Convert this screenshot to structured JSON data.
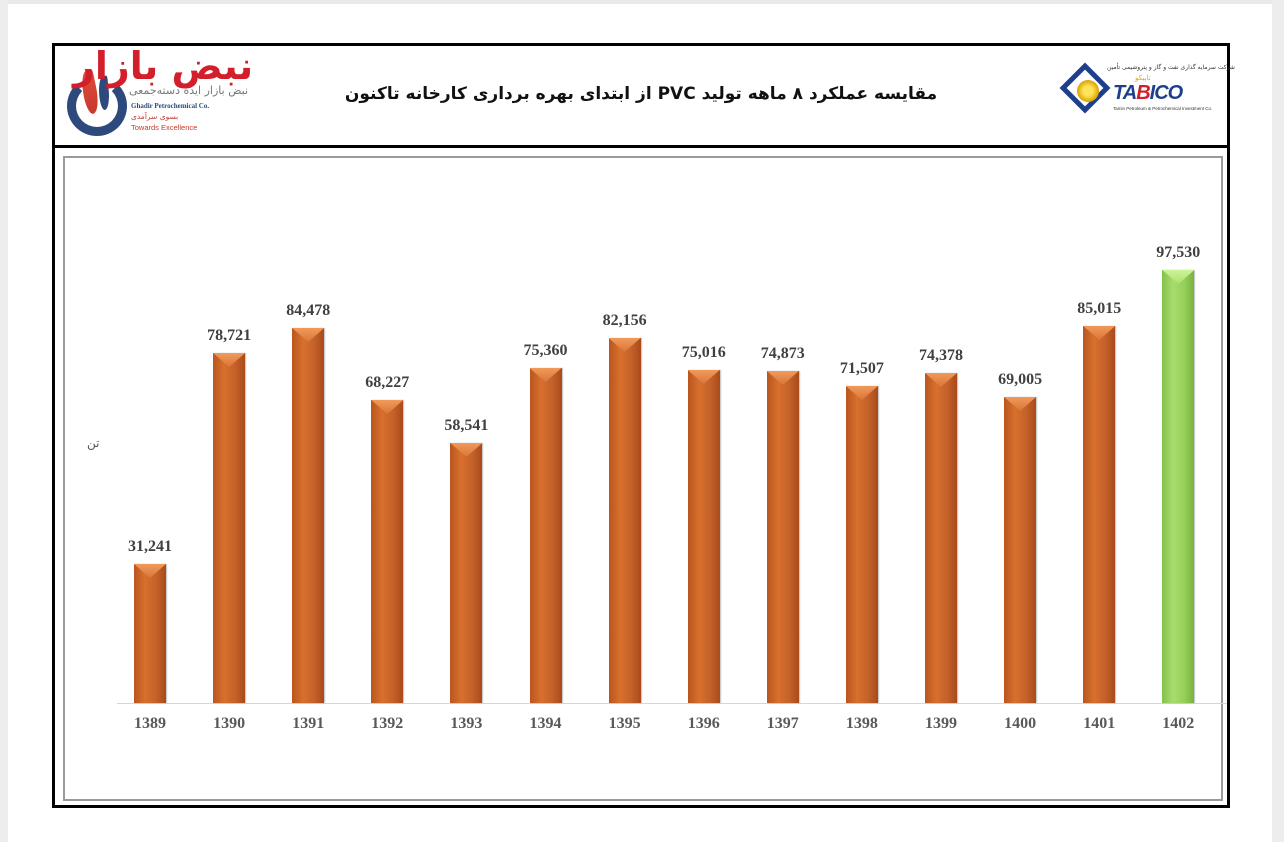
{
  "header": {
    "title": "مقایسه عملکرد ۸ ماهه تولید PVC از ابتدای بهره برداری کارخانه تاکنون",
    "left_logo": {
      "watermark": "نبض بازار",
      "watermark_sub": "نبض بازار ایده دسته‌جمعی",
      "company": "Ghadir Petrochemical Co.",
      "tagline_fa": "بسوی سرآمدی",
      "tagline_en": "Towards Excellence"
    },
    "right_logo": {
      "brand_pre": "TA",
      "brand_b": "B",
      "brand_post": "ICO",
      "fa_top": "شرکت سرمایه گذاری نفت و گاز و پتروشیمی تأمین",
      "fa_mid": "تاپیکو",
      "en_sub": "Tamin Petroleum & Petrochemical Investment Co."
    }
  },
  "chart": {
    "y_axis_label": "تن",
    "colors": {
      "normal": "#c4612a",
      "highlight": "#94d058"
    }
  },
  "chart_data": {
    "type": "bar",
    "title": "مقایسه عملکرد ۸ ماهه تولید PVC از ابتدای بهره برداری کارخانه تاکنون",
    "xlabel": "",
    "ylabel": "تن",
    "categories": [
      "1389",
      "1390",
      "1391",
      "1392",
      "1393",
      "1394",
      "1395",
      "1396",
      "1397",
      "1398",
      "1399",
      "1400",
      "1401",
      "1402"
    ],
    "values": [
      31241,
      78721,
      84478,
      68227,
      58541,
      75360,
      82156,
      75016,
      74873,
      71507,
      74378,
      69005,
      85015,
      97530
    ],
    "value_labels": [
      "31,241",
      "78,721",
      "84,478",
      "68,227",
      "58,541",
      "75,360",
      "82,156",
      "75,016",
      "74,873",
      "71,507",
      "74,378",
      "69,005",
      "85,015",
      "97,530"
    ],
    "highlight_index": 13,
    "grid": false,
    "legend": "none",
    "ylim": [
      0,
      100000
    ]
  }
}
